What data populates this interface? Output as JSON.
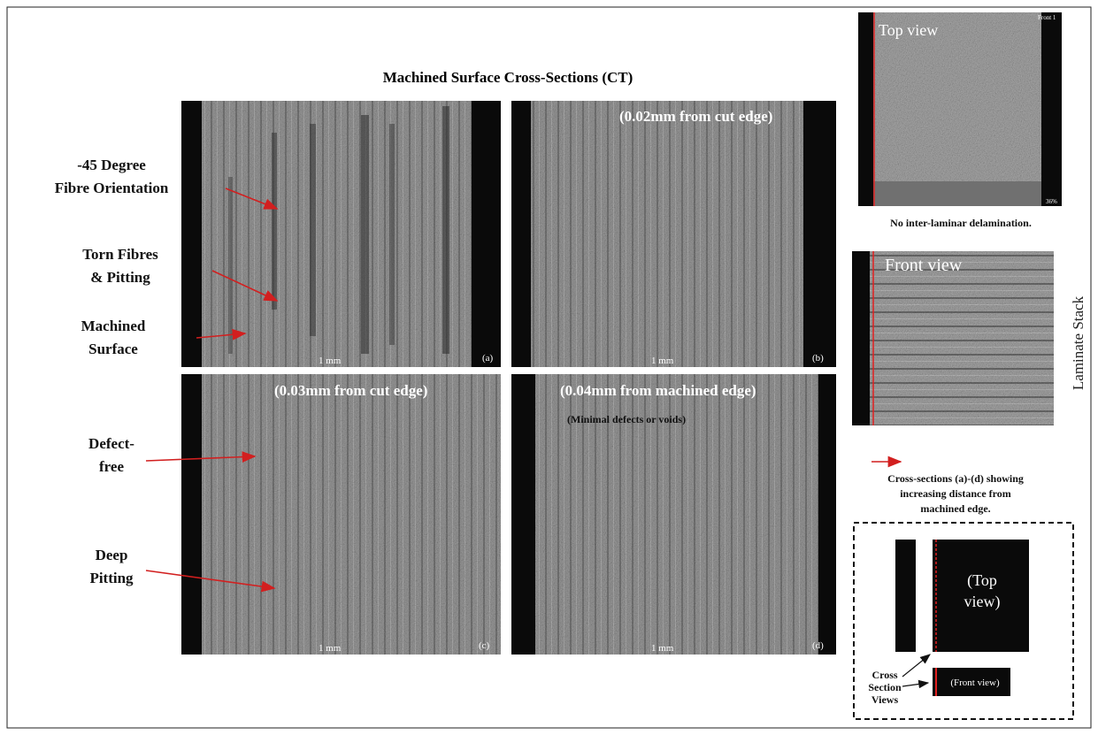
{
  "title": "Machined Surface Cross-Sections (CT)",
  "annotations": [
    {
      "lines": [
        "-45 Degree",
        "Fibre Orientation"
      ]
    },
    {
      "lines": [
        "Torn Fibres",
        "& Pitting"
      ]
    },
    {
      "lines": [
        "Machined",
        "Surface"
      ]
    },
    {
      "lines": [
        "Defect-",
        "free"
      ]
    },
    {
      "lines": [
        "Deep",
        "Pitting"
      ]
    }
  ],
  "panels": [
    {
      "label": "(a)",
      "scale": "1 mm"
    },
    {
      "label": "(b)",
      "scale": "1 mm",
      "caption": "(0.02mm from cut edge)"
    },
    {
      "label": "(c)",
      "scale": "1 mm",
      "caption": "(0.03mm from cut edge)"
    },
    {
      "label": "(d)",
      "scale": "1 mm",
      "caption": "(0.04mm from machined edge)",
      "note": "(Minimal defects or voids)"
    }
  ],
  "side": {
    "top_view": {
      "label": "Top view",
      "tag": "Front 1",
      "zoom": "36%",
      "caption": "No inter-laminar  delamination."
    },
    "front_view": {
      "label": "Front view",
      "side_label": "Laminate Stack"
    },
    "legend": {
      "lines": [
        "Cross-sections (a)-(d) showing",
        "increasing distance from",
        "machined edge."
      ]
    },
    "schematic": {
      "top": [
        "(Top",
        "view)"
      ],
      "front": "(Front view)",
      "views": [
        "Cross",
        "Section",
        "Views"
      ]
    }
  }
}
